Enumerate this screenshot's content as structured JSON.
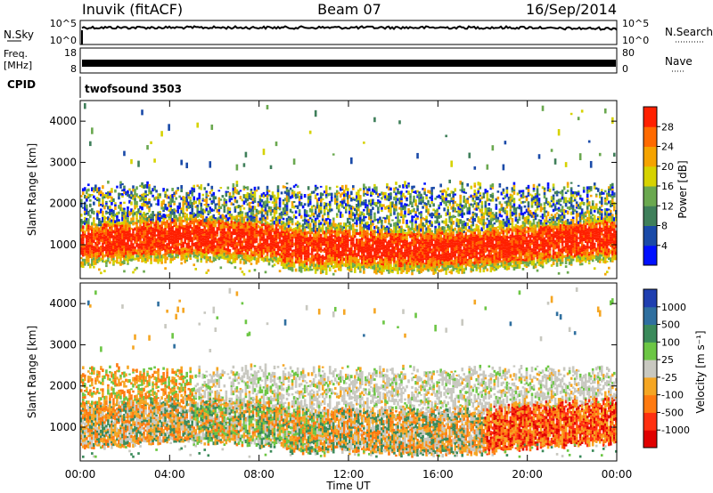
{
  "header": {
    "station": "Inuvik (fitACF)",
    "beam": "Beam 07",
    "date": "16/Sep/2014"
  },
  "strip_panels": {
    "nsky": {
      "left_label": "N.Sky",
      "left_ticks": [
        "10^5",
        "10^0"
      ],
      "right_label": "N.Search",
      "right_ticks": [
        "10^5",
        "10^0"
      ]
    },
    "freq": {
      "left_label_1": "Freq.",
      "left_label_2": "[MHz]",
      "left_ticks": [
        "18",
        "8"
      ],
      "right_label": "Nave",
      "right_ticks": [
        "80",
        "0"
      ]
    },
    "cpid": {
      "label": "CPID",
      "value": "twofsound 3503"
    }
  },
  "x_axis": {
    "ticks": [
      "00:00",
      "04:00",
      "08:00",
      "12:00",
      "16:00",
      "20:00",
      "00:00"
    ],
    "label": "Time UT"
  },
  "colors": {
    "power_scale": [
      "#0010ff",
      "#1a4aa8",
      "#3f7f5a",
      "#6aa84f",
      "#d6d200",
      "#f5a300",
      "#ff6a00",
      "#ff2000"
    ],
    "velocity_scale": [
      "#1f3fb0",
      "#2f6f9f",
      "#3a8a5a",
      "#6cc644",
      "#c8c8c0",
      "#f5a623",
      "#ff7a10",
      "#ff3010",
      "#e00000"
    ]
  },
  "chart_data": [
    {
      "type": "heatmap",
      "name_panel": "power",
      "ylabel": "Slant Range [km]",
      "y_ticks": [
        1000,
        2000,
        3000,
        4000
      ],
      "ylim": [
        180,
        4500
      ],
      "xlim": [
        0,
        24
      ],
      "colorbar": {
        "label": "Power [dB]",
        "tick_labels": [
          "4",
          "8",
          "12",
          "16",
          "20",
          "24",
          "28"
        ],
        "range": [
          0,
          32
        ]
      },
      "bands": [
        {
          "x_start": 0,
          "x_end": 24,
          "y_low": 600,
          "y_high": 1400,
          "level": "high"
        },
        {
          "x_start": 0,
          "x_end": 24,
          "y_low": 1400,
          "y_high": 2400,
          "level": "medium"
        },
        {
          "x_start": 1,
          "x_end": 22,
          "y_low": 2800,
          "y_high": 4300,
          "level": "sparse"
        }
      ]
    },
    {
      "type": "heatmap",
      "name_panel": "velocity",
      "ylabel": "Slant Range [km]",
      "y_ticks": [
        1000,
        2000,
        3000,
        4000
      ],
      "ylim": [
        180,
        4500
      ],
      "xlim": [
        0,
        24
      ],
      "colorbar": {
        "label": "Velocity [m s⁻¹]",
        "tick_labels": [
          "1000",
          "500",
          "100",
          "25",
          "-25",
          "-100",
          "-500",
          "-1000"
        ]
      },
      "bands": [
        {
          "x_start": 0,
          "x_end": 24,
          "y_low": 600,
          "y_high": 1600,
          "level": "dense"
        },
        {
          "x_start": 6,
          "x_end": 24,
          "y_low": 1600,
          "y_high": 2500,
          "level": "ground-scatter"
        },
        {
          "x_start": 1,
          "x_end": 22,
          "y_low": 2800,
          "y_high": 4300,
          "level": "sparse"
        }
      ]
    }
  ]
}
